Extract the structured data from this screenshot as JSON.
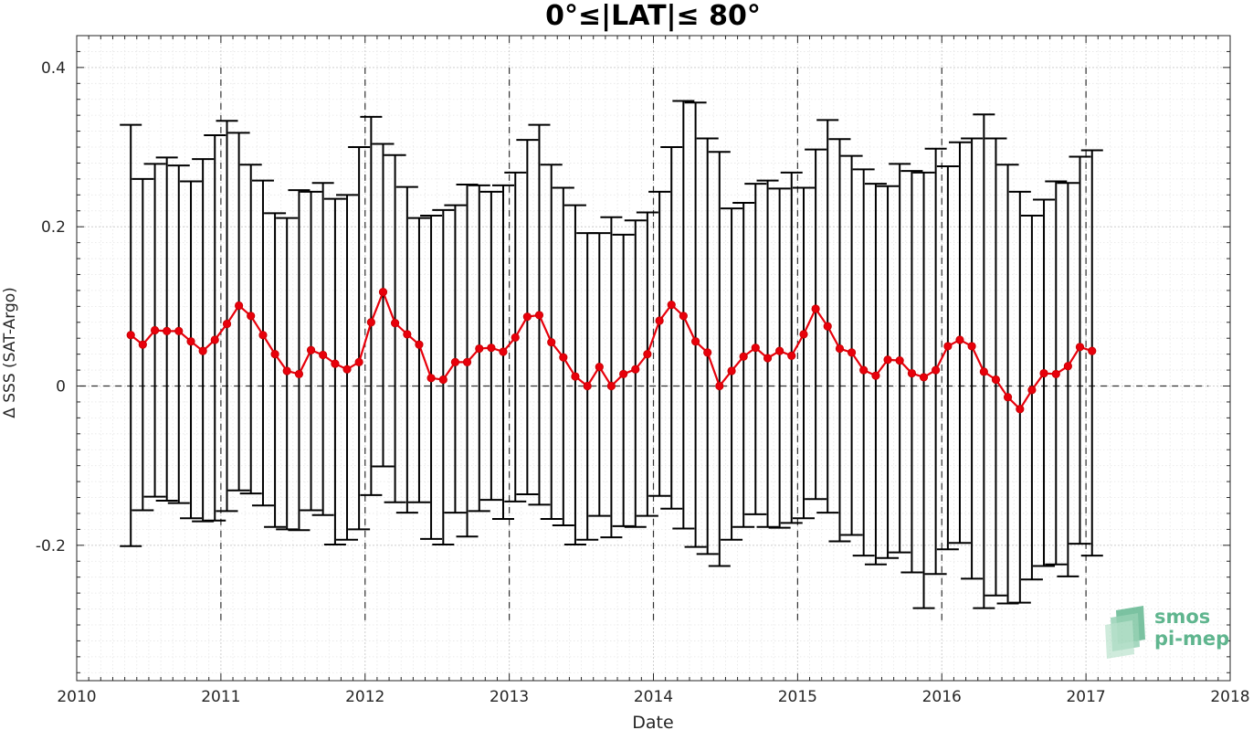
{
  "chart_data": {
    "type": "line",
    "title": "0°≤|LAT|≤ 80°",
    "xlabel": "Date",
    "ylabel": "Δ SSS (SAT-Argo)",
    "xlim": [
      2010,
      2018
    ],
    "ylim": [
      -0.37,
      0.44
    ],
    "x_ticks": [
      "2010",
      "2011",
      "2012",
      "2013",
      "2014",
      "2015",
      "2016",
      "2017",
      "2018"
    ],
    "y_ticks": [
      {
        "value": -0.2,
        "label": "-0.2"
      },
      {
        "value": 0,
        "label": "0"
      },
      {
        "value": 0.2,
        "label": "0.2"
      },
      {
        "value": 0.4,
        "label": "0.4"
      }
    ],
    "grid": true,
    "minor_grid": true,
    "year_lines": "dashed vertical lines at each year",
    "zero_line": "dashed horizontal line at 0",
    "colors": {
      "mean_line": "#e8000b",
      "error_bars": "#000000",
      "grid": "#d9d9d9"
    },
    "series": [
      {
        "x": [
          2010.375,
          2010.458,
          2010.542,
          2010.625,
          2010.708,
          2010.792,
          2010.875,
          2010.958,
          2011.042,
          2011.125,
          2011.208,
          2011.292,
          2011.375,
          2011.458,
          2011.542,
          2011.625,
          2011.708,
          2011.792,
          2011.875,
          2011.958,
          2012.042,
          2012.125,
          2012.208,
          2012.292,
          2012.375,
          2012.458,
          2012.542,
          2012.625,
          2012.708,
          2012.792,
          2012.875,
          2012.958,
          2013.042,
          2013.125,
          2013.208,
          2013.292,
          2013.375,
          2013.458,
          2013.542,
          2013.625,
          2013.708,
          2013.792,
          2013.875,
          2013.958,
          2014.042,
          2014.125,
          2014.208,
          2014.292,
          2014.375,
          2014.458,
          2014.542,
          2014.625,
          2014.708,
          2014.792,
          2014.875,
          2014.958,
          2015.042,
          2015.125,
          2015.208,
          2015.292,
          2015.375,
          2015.458,
          2015.542,
          2015.625,
          2015.708,
          2015.792,
          2015.875,
          2015.958,
          2016.042,
          2016.125,
          2016.208,
          2016.292,
          2016.375,
          2016.458,
          2016.542,
          2016.625,
          2016.708,
          2016.792,
          2016.875,
          2016.958,
          2017.042
        ],
        "mean": [
          0.064,
          0.052,
          0.07,
          0.069,
          0.069,
          0.056,
          0.044,
          0.058,
          0.078,
          0.101,
          0.088,
          0.064,
          0.04,
          0.019,
          0.015,
          0.045,
          0.039,
          0.028,
          0.021,
          0.03,
          0.08,
          0.118,
          0.079,
          0.065,
          0.052,
          0.01,
          0.008,
          0.03,
          0.03,
          0.047,
          0.048,
          0.043,
          0.061,
          0.087,
          0.089,
          0.055,
          0.036,
          0.012,
          0.0,
          0.024,
          0.0,
          0.015,
          0.021,
          0.04,
          0.082,
          0.102,
          0.088,
          0.056,
          0.042,
          0.0,
          0.019,
          0.037,
          0.048,
          0.035,
          0.044,
          0.038,
          0.065,
          0.097,
          0.075,
          0.047,
          0.042,
          0.02,
          0.013,
          0.033,
          0.032,
          0.016,
          0.011,
          0.02,
          0.05,
          0.058,
          0.05,
          0.018,
          0.008,
          -0.014,
          -0.029,
          -0.005,
          0.016,
          0.015,
          0.025,
          0.049,
          0.044
        ],
        "upper": [
          0.328,
          0.26,
          0.279,
          0.287,
          0.277,
          0.257,
          0.285,
          0.315,
          0.333,
          0.318,
          0.278,
          0.258,
          0.217,
          0.211,
          0.246,
          0.244,
          0.255,
          0.235,
          0.24,
          0.3,
          0.338,
          0.304,
          0.29,
          0.25,
          0.211,
          0.214,
          0.221,
          0.227,
          0.253,
          0.252,
          0.244,
          0.252,
          0.268,
          0.309,
          0.328,
          0.278,
          0.249,
          0.227,
          0.192,
          0.192,
          0.212,
          0.19,
          0.208,
          0.218,
          0.244,
          0.3,
          0.358,
          0.356,
          0.311,
          0.294,
          0.223,
          0.23,
          0.254,
          0.258,
          0.248,
          0.268,
          0.249,
          0.297,
          0.334,
          0.31,
          0.289,
          0.272,
          0.254,
          0.251,
          0.279,
          0.27,
          0.268,
          0.298,
          0.276,
          0.306,
          0.311,
          0.341,
          0.311,
          0.278,
          0.244,
          0.214,
          0.234,
          0.257,
          0.255,
          0.288,
          0.296
        ],
        "lower": [
          -0.201,
          -0.156,
          -0.139,
          -0.144,
          -0.147,
          -0.166,
          -0.17,
          -0.169,
          -0.157,
          -0.131,
          -0.135,
          -0.15,
          -0.177,
          -0.18,
          -0.181,
          -0.156,
          -0.162,
          -0.199,
          -0.193,
          -0.18,
          -0.137,
          -0.101,
          -0.146,
          -0.159,
          -0.146,
          -0.192,
          -0.199,
          -0.159,
          -0.189,
          -0.157,
          -0.143,
          -0.167,
          -0.145,
          -0.136,
          -0.149,
          -0.167,
          -0.175,
          -0.199,
          -0.193,
          -0.163,
          -0.19,
          -0.176,
          -0.177,
          -0.163,
          -0.138,
          -0.154,
          -0.179,
          -0.202,
          -0.211,
          -0.226,
          -0.193,
          -0.177,
          -0.161,
          -0.177,
          -0.178,
          -0.172,
          -0.166,
          -0.142,
          -0.159,
          -0.195,
          -0.187,
          -0.213,
          -0.224,
          -0.216,
          -0.209,
          -0.234,
          -0.279,
          -0.236,
          -0.205,
          -0.197,
          -0.242,
          -0.279,
          -0.263,
          -0.273,
          -0.272,
          -0.243,
          -0.226,
          -0.224,
          -0.239,
          -0.198,
          -0.213
        ]
      }
    ]
  },
  "logo": {
    "line1": "smos",
    "line2": "pi-mep",
    "color": "#5fb58e"
  }
}
